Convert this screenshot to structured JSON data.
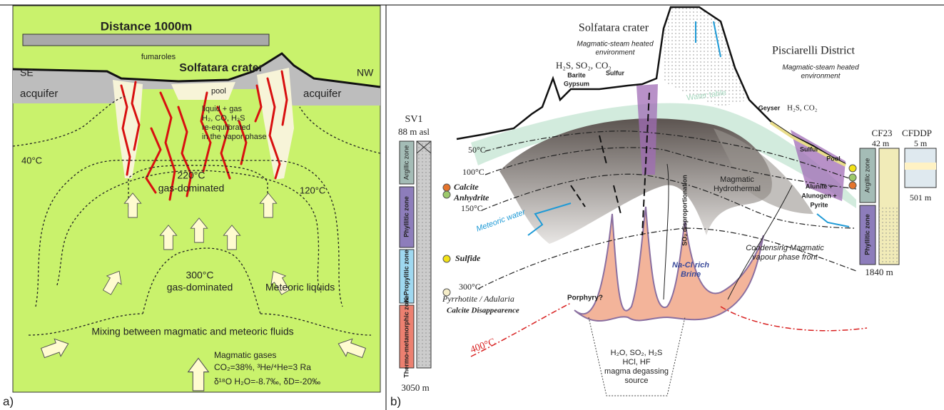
{
  "panel_a": {
    "label": "a)",
    "scale_bar": "Distance 1000m",
    "se": "SE",
    "nw": "NW",
    "title": "Solfatara crater",
    "fumaroles": "fumaroles",
    "pool": "pool",
    "aquifer_left": "acquifer",
    "aquifer_right": "acquifer",
    "vapor_note": [
      "liquid + gas",
      "H₂, CO, H₂S",
      "re-equlibrated",
      "in the vapor phase"
    ],
    "isotherms": [
      "40°C",
      "220°C",
      "120°C",
      "300°C"
    ],
    "zone_220": "gas-dominated",
    "zone_300": "gas-dominated",
    "meteoric": "Meteoric liquids",
    "mixing": "Mixing between magmatic and meteoric fluids",
    "gases": [
      "Magmatic gases",
      "CO₂=38%, ³He/⁴He=3 Ra",
      "δ¹⁸O H₂O=-8.7‰, δD=-20‰"
    ]
  },
  "panel_b": {
    "label": "b)",
    "title": "Solfatara crater",
    "crater_env": [
      "Magmatic-steam heated",
      "environment"
    ],
    "crater_gases": "H₂S, SO₂, CO₂",
    "barite": "Barite",
    "gypsum": "Gypsum",
    "sulfur_crater": "Sulfur",
    "water_table": "Water table",
    "district": "Pisciarelli District",
    "district_env": [
      "Magmatic-steam heated",
      "environment"
    ],
    "geyser": "Geyser",
    "district_gases": "H₂S, CO₂",
    "sulfur_district": "Sulfur",
    "pool": "Pool",
    "well_left": {
      "name": "SV1",
      "top": "88 m asl",
      "bottom": "3050 m",
      "zones": [
        "Argillic zone",
        "Phyllitic zone",
        "K-Propylitic zone",
        "Thermo-metamorphic zone"
      ]
    },
    "minerals_left": [
      "Calcite",
      "Anhydrite",
      "Sulfide",
      "Pyrrhotite / Adularia",
      "Calcite Disappearence"
    ],
    "isotherms": [
      "50°C",
      "100°C",
      "150°C",
      "300°C",
      "400°C"
    ],
    "meteoric_water": "Meteoric water",
    "disproportionation": "SO₂ disproportionation",
    "hydrothermal": [
      "Magmatic",
      "Hydrothermal"
    ],
    "minerals_right": [
      "Alunite +",
      "Alunogen +",
      "Pyrite"
    ],
    "vapour_front": [
      "Condensing Magmatic",
      "vapour phase front"
    ],
    "brine": [
      "Na-Cl rich",
      "Brine"
    ],
    "porphyry": "Porphyry?",
    "source": [
      "H₂O, SO₂, H₂S",
      "HCl, HF",
      "magma degassing",
      "source"
    ],
    "well_right": {
      "name": "CF23",
      "top": "42 m",
      "bottom": "1840 m",
      "zones": [
        "Argillic zone",
        "Phyllitic zone"
      ]
    },
    "well_ddp": {
      "name": "CFDDP",
      "top": "5 m",
      "bottom": "501 m"
    }
  }
}
